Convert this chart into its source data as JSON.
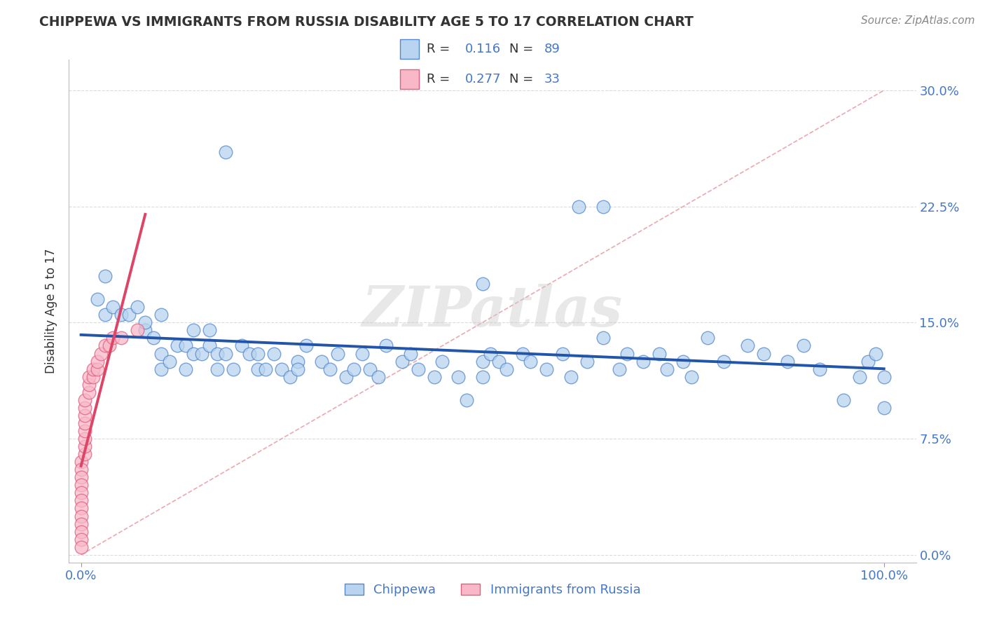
{
  "title": "CHIPPEWA VS IMMIGRANTS FROM RUSSIA DISABILITY AGE 5 TO 17 CORRELATION CHART",
  "source": "Source: ZipAtlas.com",
  "ylabel": "Disability Age 5 to 17",
  "R_chippewa": "0.116",
  "N_chippewa": "89",
  "R_russia": "0.277",
  "N_russia": "33",
  "watermark_text": "ZIPatlas",
  "color_chippewa_face": "#b8d4f0",
  "color_chippewa_edge": "#5588cc",
  "color_russia_face": "#f8b8c8",
  "color_russia_edge": "#e06080",
  "line_color_chippewa": "#2255aa",
  "line_color_russia": "#dd4466",
  "diagonal_color": "#e8a0a8",
  "grid_color": "#cccccc",
  "title_color": "#333333",
  "source_color": "#888888",
  "tick_label_color": "#4477cc",
  "ylabel_color": "#333333",
  "xlim": [
    -0.015,
    1.04
  ],
  "ylim": [
    -0.005,
    0.32
  ],
  "yticks": [
    0.0,
    0.075,
    0.15,
    0.225,
    0.3
  ],
  "ytick_labels": [
    "0.0%",
    "7.5%",
    "15.0%",
    "22.5%",
    "30.0%"
  ],
  "xticks": [
    0.0,
    1.0
  ],
  "xtick_labels": [
    "0.0%",
    "100.0%"
  ],
  "chip_x": [
    0.02,
    0.03,
    0.03,
    0.04,
    0.05,
    0.06,
    0.07,
    0.08,
    0.08,
    0.09,
    0.1,
    0.1,
    0.1,
    0.11,
    0.12,
    0.13,
    0.13,
    0.14,
    0.14,
    0.15,
    0.16,
    0.16,
    0.17,
    0.17,
    0.18,
    0.19,
    0.2,
    0.21,
    0.22,
    0.22,
    0.23,
    0.24,
    0.25,
    0.26,
    0.27,
    0.27,
    0.28,
    0.3,
    0.31,
    0.32,
    0.33,
    0.34,
    0.35,
    0.36,
    0.37,
    0.38,
    0.4,
    0.41,
    0.42,
    0.44,
    0.45,
    0.47,
    0.48,
    0.5,
    0.5,
    0.51,
    0.52,
    0.53,
    0.55,
    0.56,
    0.58,
    0.6,
    0.61,
    0.63,
    0.65,
    0.67,
    0.68,
    0.7,
    0.72,
    0.73,
    0.75,
    0.76,
    0.78,
    0.8,
    0.83,
    0.85,
    0.88,
    0.9,
    0.92,
    0.95,
    0.97,
    0.98,
    0.99,
    1.0,
    1.0,
    0.62,
    0.65,
    0.5,
    0.18
  ],
  "chip_y": [
    0.165,
    0.18,
    0.155,
    0.16,
    0.155,
    0.155,
    0.16,
    0.145,
    0.15,
    0.14,
    0.155,
    0.13,
    0.12,
    0.125,
    0.135,
    0.12,
    0.135,
    0.145,
    0.13,
    0.13,
    0.145,
    0.135,
    0.12,
    0.13,
    0.13,
    0.12,
    0.135,
    0.13,
    0.13,
    0.12,
    0.12,
    0.13,
    0.12,
    0.115,
    0.125,
    0.12,
    0.135,
    0.125,
    0.12,
    0.13,
    0.115,
    0.12,
    0.13,
    0.12,
    0.115,
    0.135,
    0.125,
    0.13,
    0.12,
    0.115,
    0.125,
    0.115,
    0.1,
    0.115,
    0.125,
    0.13,
    0.125,
    0.12,
    0.13,
    0.125,
    0.12,
    0.13,
    0.115,
    0.125,
    0.14,
    0.12,
    0.13,
    0.125,
    0.13,
    0.12,
    0.125,
    0.115,
    0.14,
    0.125,
    0.135,
    0.13,
    0.125,
    0.135,
    0.12,
    0.1,
    0.115,
    0.125,
    0.13,
    0.115,
    0.095,
    0.225,
    0.225,
    0.175,
    0.26
  ],
  "russ_x": [
    0.0,
    0.0,
    0.0,
    0.0,
    0.0,
    0.0,
    0.0,
    0.0,
    0.0,
    0.0,
    0.0,
    0.0,
    0.005,
    0.005,
    0.005,
    0.005,
    0.005,
    0.005,
    0.005,
    0.005,
    0.01,
    0.01,
    0.01,
    0.015,
    0.015,
    0.02,
    0.02,
    0.025,
    0.03,
    0.035,
    0.04,
    0.05,
    0.07
  ],
  "russ_y": [
    0.06,
    0.055,
    0.05,
    0.045,
    0.04,
    0.035,
    0.03,
    0.025,
    0.02,
    0.015,
    0.01,
    0.005,
    0.065,
    0.07,
    0.075,
    0.08,
    0.085,
    0.09,
    0.095,
    0.1,
    0.105,
    0.11,
    0.115,
    0.115,
    0.12,
    0.12,
    0.125,
    0.13,
    0.135,
    0.135,
    0.14,
    0.14,
    0.145
  ]
}
